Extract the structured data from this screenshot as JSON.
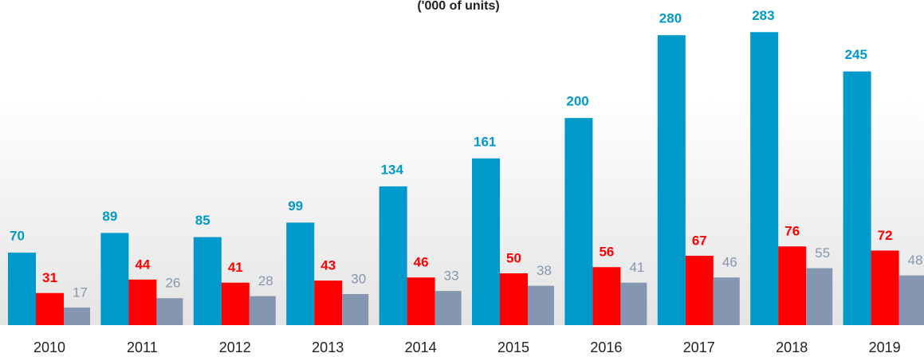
{
  "chart_data": {
    "type": "bar",
    "title": "('000 of units)",
    "categories": [
      "2010",
      "2011",
      "2012",
      "2013",
      "2014",
      "2015",
      "2016",
      "2017",
      "2018",
      "2019"
    ],
    "series": [
      {
        "color": "#0099cc",
        "values": [
          70,
          89,
          85,
          99,
          134,
          161,
          200,
          280,
          283,
          245
        ]
      },
      {
        "color": "#ff0000",
        "values": [
          31,
          44,
          41,
          43,
          46,
          50,
          56,
          67,
          76,
          72
        ]
      },
      {
        "color": "#8496b0",
        "values": [
          17,
          26,
          28,
          30,
          33,
          38,
          41,
          46,
          55,
          48
        ]
      }
    ],
    "ylim": [
      0,
      314
    ]
  }
}
